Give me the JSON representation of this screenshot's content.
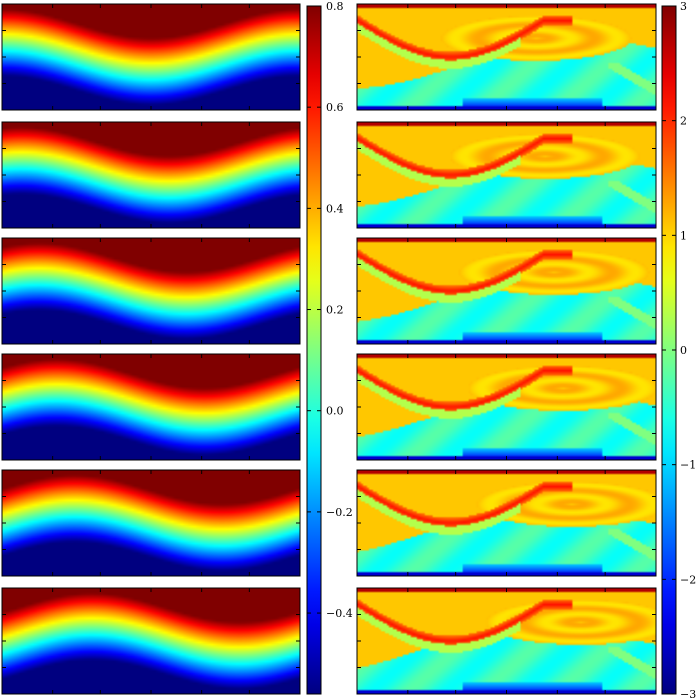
{
  "chart_data": [
    {
      "type": "heatmap",
      "colormap": "jet",
      "panels": 6,
      "field": "smooth sinusoidal band, high values at top, low at bottom",
      "colorbar": {
        "vmin": -0.56,
        "vmax": 0.8,
        "ticks": [
          -0.4,
          -0.2,
          0.0,
          0.2,
          0.4,
          0.6,
          0.8
        ],
        "tick_labels": [
          "−0.4",
          "−0.2",
          "0.0",
          "0.2",
          "0.4",
          "0.6",
          "0.8"
        ]
      }
    },
    {
      "type": "heatmap",
      "colormap": "jet",
      "panels": 6,
      "field": "vorticity-like field with shear layer and recirculating eddy",
      "colorbar": {
        "vmin": -3,
        "vmax": 3,
        "ticks": [
          -3,
          -2,
          -1,
          0,
          1,
          2,
          3
        ],
        "tick_labels": [
          "−3",
          "−2",
          "−1",
          "0",
          "1",
          "2",
          "3"
        ]
      }
    }
  ]
}
